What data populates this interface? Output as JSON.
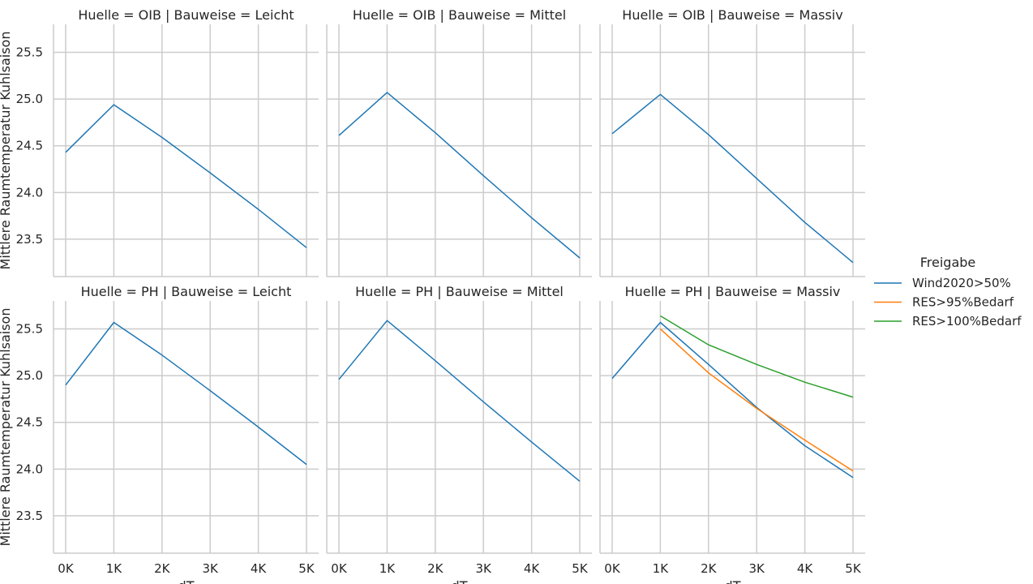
{
  "chart_data": {
    "type": "line",
    "x": [
      "0K",
      "1K",
      "2K",
      "3K",
      "4K",
      "5K"
    ],
    "xlabel": "dT",
    "ylabel": "Mittlere Raumtemperatur Kuhlsaison",
    "ylim": [
      23.1,
      25.8
    ],
    "yticks": [
      "23.5",
      "24.0",
      "24.5",
      "25.0",
      "25.5"
    ],
    "grid": true,
    "legend": {
      "title": "Freigabe",
      "placement": "right",
      "entries": [
        {
          "name": "Wind2020>50%",
          "color": "#1f77b4"
        },
        {
          "name": "RES>95%Bedarf",
          "color": "#ff7f0e"
        },
        {
          "name": "RES>100%Bedarf",
          "color": "#2ca02c"
        }
      ]
    },
    "panels": [
      {
        "title": "Huelle = OIB | Bauweise = Leicht",
        "series": [
          {
            "name": "Wind2020>50%",
            "color": "#1f77b4",
            "x": [
              "0K",
              "1K",
              "2K",
              "3K",
              "4K",
              "5K"
            ],
            "values": [
              24.43,
              24.94,
              24.59,
              24.21,
              23.82,
              23.41
            ]
          }
        ]
      },
      {
        "title": "Huelle = OIB | Bauweise = Mittel",
        "series": [
          {
            "name": "Wind2020>50%",
            "color": "#1f77b4",
            "x": [
              "0K",
              "1K",
              "2K",
              "3K",
              "4K",
              "5K"
            ],
            "values": [
              24.61,
              25.07,
              24.64,
              24.18,
              23.73,
              23.3
            ]
          }
        ]
      },
      {
        "title": "Huelle = OIB | Bauweise = Massiv",
        "series": [
          {
            "name": "Wind2020>50%",
            "color": "#1f77b4",
            "x": [
              "0K",
              "1K",
              "2K",
              "3K",
              "4K",
              "5K"
            ],
            "values": [
              24.63,
              25.05,
              24.62,
              24.15,
              23.68,
              23.25
            ]
          }
        ]
      },
      {
        "title": "Huelle = PH | Bauweise = Leicht",
        "series": [
          {
            "name": "Wind2020>50%",
            "color": "#1f77b4",
            "x": [
              "0K",
              "1K",
              "2K",
              "3K",
              "4K",
              "5K"
            ],
            "values": [
              24.9,
              25.57,
              25.22,
              24.84,
              24.45,
              24.05
            ]
          }
        ]
      },
      {
        "title": "Huelle = PH | Bauweise = Mittel",
        "series": [
          {
            "name": "Wind2020>50%",
            "color": "#1f77b4",
            "x": [
              "0K",
              "1K",
              "2K",
              "3K",
              "4K",
              "5K"
            ],
            "values": [
              24.96,
              25.59,
              25.16,
              24.72,
              24.29,
              23.87
            ]
          }
        ]
      },
      {
        "title": "Huelle = PH | Bauweise = Massiv",
        "series": [
          {
            "name": "Wind2020>50%",
            "color": "#1f77b4",
            "x": [
              "0K",
              "1K",
              "2K",
              "3K",
              "4K",
              "5K"
            ],
            "values": [
              24.97,
              25.57,
              25.12,
              24.66,
              24.25,
              23.91
            ]
          },
          {
            "name": "RES>95%Bedarf",
            "color": "#ff7f0e",
            "x": [
              "1K",
              "2K",
              "3K",
              "4K",
              "5K"
            ],
            "values": [
              25.5,
              25.03,
              24.65,
              24.31,
              23.98
            ]
          },
          {
            "name": "RES>100%Bedarf",
            "color": "#2ca02c",
            "x": [
              "1K",
              "2K",
              "3K",
              "4K",
              "5K"
            ],
            "values": [
              25.64,
              25.33,
              25.12,
              24.93,
              24.77
            ]
          }
        ]
      }
    ]
  }
}
